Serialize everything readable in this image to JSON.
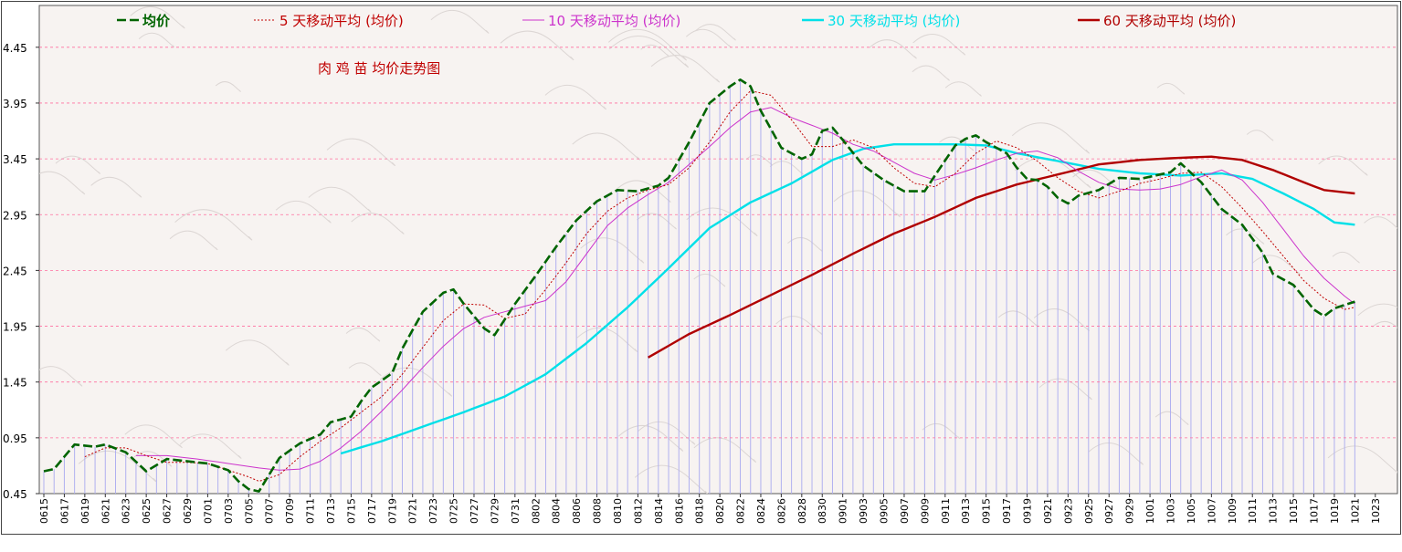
{
  "chart_data": {
    "type": "line",
    "title": "肉 鸡 苗 均价走势图",
    "xlabel": "",
    "ylabel": "",
    "ylim": [
      0.45,
      4.7
    ],
    "yticks": [
      "0.45",
      "0.95",
      "1.45",
      "1.95",
      "2.45",
      "2.95",
      "3.45",
      "3.95",
      "4.45"
    ],
    "grid": true,
    "legend_position": "top",
    "x": [
      "0615",
      "0616",
      "0617",
      "0618",
      "0619",
      "0620",
      "0621",
      "0622",
      "0623",
      "0624",
      "0625",
      "0626",
      "0627",
      "0628",
      "0629",
      "0630",
      "0701",
      "0702",
      "0703",
      "0704",
      "0705",
      "0706",
      "0707",
      "0708",
      "0709",
      "0710",
      "0711",
      "0712",
      "0713",
      "0714",
      "0715",
      "0716",
      "0717",
      "0718",
      "0719",
      "0720",
      "0721",
      "0722",
      "0723",
      "0724",
      "0725",
      "0726",
      "0727",
      "0728",
      "0729",
      "0730",
      "0731",
      "0801",
      "0802",
      "0803",
      "0804",
      "0805",
      "0806",
      "0807",
      "0808",
      "0809",
      "0810",
      "0811",
      "0812",
      "0813",
      "0814",
      "0815",
      "0816",
      "0817",
      "0818",
      "0819",
      "0820",
      "0821",
      "0822",
      "0823",
      "0824",
      "0825",
      "0826",
      "0827",
      "0828",
      "0829",
      "0830",
      "0831",
      "0901",
      "0902",
      "0903",
      "0904",
      "0905",
      "0906",
      "0907",
      "0908",
      "0909",
      "0910",
      "0911",
      "0912",
      "0913",
      "0914",
      "0915",
      "0916",
      "0917",
      "0918",
      "0919",
      "0920",
      "0921",
      "0922",
      "0923",
      "0924",
      "0925",
      "0926",
      "0927",
      "0928",
      "0929",
      "0930",
      "1001",
      "1002",
      "1003",
      "1004",
      "1005",
      "1006",
      "1007",
      "1008",
      "1009",
      "1010",
      "1011",
      "1012",
      "1013",
      "1014",
      "1015",
      "1016",
      "1017",
      "1018",
      "1019",
      "1020",
      "1021",
      "1022",
      "1023",
      "1024"
    ],
    "x_tick_labels": [
      "0615",
      "0617",
      "0619",
      "0621",
      "0623",
      "0625",
      "0627",
      "0629",
      "0701",
      "0703",
      "0705",
      "0707",
      "0709",
      "0711",
      "0713",
      "0715",
      "0717",
      "0719",
      "0721",
      "0723",
      "0725",
      "0727",
      "0729",
      "0731",
      "0802",
      "0804",
      "0806",
      "0808",
      "0810",
      "0812",
      "0814",
      "0816",
      "0818",
      "0820",
      "0822",
      "0824",
      "0826",
      "0828",
      "0830",
      "0901",
      "0903",
      "0905",
      "0907",
      "0909",
      "0911",
      "0913",
      "0915",
      "0917",
      "0919",
      "0921",
      "0923",
      "0925",
      "0927",
      "0929",
      "1001",
      "1003",
      "1005",
      "1007",
      "1009",
      "1011",
      "1013",
      "1015",
      "1017",
      "1019",
      "1021",
      "1023"
    ],
    "series": [
      {
        "name": "均价",
        "color": "#006400",
        "style": "dashed-thick",
        "anchors": [
          [
            0,
            0.65
          ],
          [
            1,
            0.67
          ],
          [
            3,
            0.89
          ],
          [
            5,
            0.87
          ],
          [
            6,
            0.89
          ],
          [
            8,
            0.82
          ],
          [
            10,
            0.65
          ],
          [
            12,
            0.76
          ],
          [
            14,
            0.74
          ],
          [
            16,
            0.72
          ],
          [
            18,
            0.66
          ],
          [
            19,
            0.56
          ],
          [
            20,
            0.49
          ],
          [
            21,
            0.47
          ],
          [
            22,
            0.62
          ],
          [
            23,
            0.77
          ],
          [
            25,
            0.9
          ],
          [
            27,
            0.98
          ],
          [
            28,
            1.09
          ],
          [
            30,
            1.14
          ],
          [
            31,
            1.28
          ],
          [
            32,
            1.4
          ],
          [
            34,
            1.53
          ],
          [
            35,
            1.75
          ],
          [
            37,
            2.08
          ],
          [
            39,
            2.25
          ],
          [
            40,
            2.28
          ],
          [
            41,
            2.15
          ],
          [
            43,
            1.93
          ],
          [
            44,
            1.87
          ],
          [
            46,
            2.15
          ],
          [
            48,
            2.4
          ],
          [
            50,
            2.66
          ],
          [
            52,
            2.9
          ],
          [
            54,
            3.07
          ],
          [
            56,
            3.17
          ],
          [
            58,
            3.16
          ],
          [
            60,
            3.21
          ],
          [
            61,
            3.28
          ],
          [
            63,
            3.6
          ],
          [
            65,
            3.95
          ],
          [
            67,
            4.1
          ],
          [
            68,
            4.16
          ],
          [
            69,
            4.1
          ],
          [
            70,
            3.88
          ],
          [
            72,
            3.55
          ],
          [
            74,
            3.45
          ],
          [
            75,
            3.49
          ],
          [
            76,
            3.7
          ],
          [
            77,
            3.73
          ],
          [
            78,
            3.62
          ],
          [
            80,
            3.39
          ],
          [
            82,
            3.26
          ],
          [
            84,
            3.16
          ],
          [
            86,
            3.16
          ],
          [
            87,
            3.3
          ],
          [
            89,
            3.57
          ],
          [
            90,
            3.63
          ],
          [
            91,
            3.66
          ],
          [
            92,
            3.6
          ],
          [
            94,
            3.5
          ],
          [
            95,
            3.37
          ],
          [
            96,
            3.27
          ],
          [
            97,
            3.26
          ],
          [
            98,
            3.2
          ],
          [
            99,
            3.1
          ],
          [
            100,
            3.05
          ],
          [
            101,
            3.12
          ],
          [
            103,
            3.17
          ],
          [
            105,
            3.28
          ],
          [
            107,
            3.27
          ],
          [
            109,
            3.31
          ],
          [
            110,
            3.33
          ],
          [
            111,
            3.41
          ],
          [
            113,
            3.24
          ],
          [
            115,
            3.0
          ],
          [
            117,
            2.86
          ],
          [
            119,
            2.61
          ],
          [
            120,
            2.42
          ],
          [
            122,
            2.32
          ],
          [
            124,
            2.1
          ],
          [
            125,
            2.04
          ],
          [
            126,
            2.11
          ],
          [
            128,
            2.17
          ]
        ]
      },
      {
        "name": "5 天移动平均 (均价)",
        "color": "#c00000",
        "style": "dotted",
        "anchors": [
          [
            4,
            0.78
          ],
          [
            6,
            0.86
          ],
          [
            8,
            0.86
          ],
          [
            10,
            0.79
          ],
          [
            12,
            0.73
          ],
          [
            14,
            0.73
          ],
          [
            16,
            0.72
          ],
          [
            18,
            0.66
          ],
          [
            20,
            0.6
          ],
          [
            21,
            0.56
          ],
          [
            23,
            0.62
          ],
          [
            25,
            0.78
          ],
          [
            27,
            0.92
          ],
          [
            29,
            1.04
          ],
          [
            31,
            1.18
          ],
          [
            33,
            1.32
          ],
          [
            35,
            1.52
          ],
          [
            37,
            1.76
          ],
          [
            39,
            2.0
          ],
          [
            41,
            2.15
          ],
          [
            43,
            2.14
          ],
          [
            45,
            2.02
          ],
          [
            47,
            2.06
          ],
          [
            49,
            2.28
          ],
          [
            51,
            2.52
          ],
          [
            53,
            2.78
          ],
          [
            55,
            2.98
          ],
          [
            57,
            3.1
          ],
          [
            59,
            3.17
          ],
          [
            61,
            3.22
          ],
          [
            63,
            3.37
          ],
          [
            65,
            3.6
          ],
          [
            67,
            3.87
          ],
          [
            69,
            4.06
          ],
          [
            71,
            4.02
          ],
          [
            73,
            3.8
          ],
          [
            75,
            3.56
          ],
          [
            77,
            3.56
          ],
          [
            79,
            3.62
          ],
          [
            81,
            3.55
          ],
          [
            83,
            3.37
          ],
          [
            85,
            3.23
          ],
          [
            87,
            3.2
          ],
          [
            89,
            3.32
          ],
          [
            91,
            3.5
          ],
          [
            93,
            3.61
          ],
          [
            95,
            3.55
          ],
          [
            97,
            3.43
          ],
          [
            99,
            3.28
          ],
          [
            101,
            3.16
          ],
          [
            103,
            3.1
          ],
          [
            105,
            3.16
          ],
          [
            107,
            3.23
          ],
          [
            109,
            3.27
          ],
          [
            111,
            3.32
          ],
          [
            113,
            3.33
          ],
          [
            115,
            3.2
          ],
          [
            117,
            3.01
          ],
          [
            119,
            2.8
          ],
          [
            121,
            2.58
          ],
          [
            123,
            2.36
          ],
          [
            125,
            2.2
          ],
          [
            127,
            2.1
          ],
          [
            128,
            2.12
          ]
        ]
      },
      {
        "name": "10 天移动平均 (均价)",
        "color": "#cc33cc",
        "style": "solid",
        "anchors": [
          [
            9,
            0.79
          ],
          [
            12,
            0.79
          ],
          [
            15,
            0.76
          ],
          [
            18,
            0.72
          ],
          [
            21,
            0.68
          ],
          [
            23,
            0.66
          ],
          [
            25,
            0.67
          ],
          [
            27,
            0.74
          ],
          [
            29,
            0.86
          ],
          [
            31,
            1.01
          ],
          [
            33,
            1.19
          ],
          [
            35,
            1.38
          ],
          [
            37,
            1.58
          ],
          [
            39,
            1.77
          ],
          [
            41,
            1.93
          ],
          [
            43,
            2.03
          ],
          [
            45,
            2.08
          ],
          [
            47,
            2.13
          ],
          [
            49,
            2.18
          ],
          [
            51,
            2.35
          ],
          [
            53,
            2.6
          ],
          [
            55,
            2.85
          ],
          [
            57,
            3.01
          ],
          [
            59,
            3.13
          ],
          [
            61,
            3.24
          ],
          [
            63,
            3.4
          ],
          [
            65,
            3.56
          ],
          [
            67,
            3.73
          ],
          [
            69,
            3.87
          ],
          [
            71,
            3.91
          ],
          [
            73,
            3.82
          ],
          [
            75,
            3.75
          ],
          [
            77,
            3.68
          ],
          [
            79,
            3.58
          ],
          [
            81,
            3.52
          ],
          [
            83,
            3.42
          ],
          [
            85,
            3.32
          ],
          [
            87,
            3.26
          ],
          [
            89,
            3.31
          ],
          [
            91,
            3.37
          ],
          [
            93,
            3.44
          ],
          [
            95,
            3.5
          ],
          [
            97,
            3.52
          ],
          [
            99,
            3.46
          ],
          [
            101,
            3.34
          ],
          [
            103,
            3.24
          ],
          [
            105,
            3.18
          ],
          [
            107,
            3.17
          ],
          [
            109,
            3.18
          ],
          [
            111,
            3.22
          ],
          [
            113,
            3.29
          ],
          [
            115,
            3.35
          ],
          [
            117,
            3.26
          ],
          [
            119,
            3.06
          ],
          [
            121,
            2.82
          ],
          [
            123,
            2.58
          ],
          [
            125,
            2.38
          ],
          [
            127,
            2.22
          ],
          [
            128,
            2.15
          ]
        ]
      },
      {
        "name": "30 天移动平均 (均价)",
        "color": "#00e0e8",
        "style": "solid-thick",
        "anchors": [
          [
            29,
            0.81
          ],
          [
            33,
            0.92
          ],
          [
            37,
            1.05
          ],
          [
            41,
            1.18
          ],
          [
            45,
            1.32
          ],
          [
            49,
            1.52
          ],
          [
            53,
            1.8
          ],
          [
            57,
            2.12
          ],
          [
            61,
            2.47
          ],
          [
            65,
            2.83
          ],
          [
            69,
            3.06
          ],
          [
            73,
            3.23
          ],
          [
            77,
            3.44
          ],
          [
            80,
            3.54
          ],
          [
            83,
            3.58
          ],
          [
            86,
            3.58
          ],
          [
            89,
            3.58
          ],
          [
            92,
            3.57
          ],
          [
            95,
            3.5
          ],
          [
            99,
            3.43
          ],
          [
            103,
            3.36
          ],
          [
            107,
            3.32
          ],
          [
            111,
            3.3
          ],
          [
            115,
            3.32
          ],
          [
            118,
            3.27
          ],
          [
            121,
            3.14
          ],
          [
            124,
            3.0
          ],
          [
            126,
            2.88
          ],
          [
            128,
            2.86
          ]
        ]
      },
      {
        "name": "60 天移动平均 (均价)",
        "color": "#b00000",
        "style": "solid-thick",
        "anchors": [
          [
            59,
            1.67
          ],
          [
            63,
            1.88
          ],
          [
            67,
            2.05
          ],
          [
            71,
            2.23
          ],
          [
            75,
            2.41
          ],
          [
            79,
            2.6
          ],
          [
            83,
            2.78
          ],
          [
            87,
            2.93
          ],
          [
            91,
            3.1
          ],
          [
            95,
            3.22
          ],
          [
            99,
            3.31
          ],
          [
            103,
            3.4
          ],
          [
            107,
            3.44
          ],
          [
            111,
            3.46
          ],
          [
            114,
            3.47
          ],
          [
            117,
            3.44
          ],
          [
            120,
            3.35
          ],
          [
            123,
            3.24
          ],
          [
            125,
            3.17
          ],
          [
            127,
            3.15
          ],
          [
            128,
            3.14
          ]
        ]
      }
    ]
  }
}
